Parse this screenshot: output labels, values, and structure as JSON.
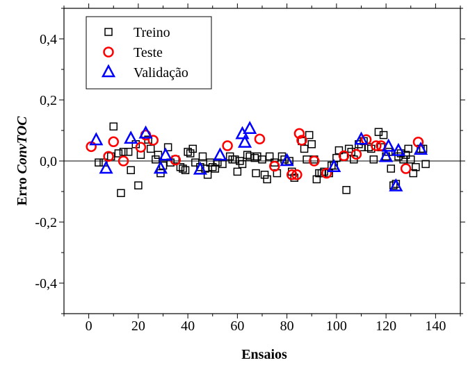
{
  "chart_data": {
    "type": "scatter",
    "xlabel": "Ensaios",
    "ylabel_prefix": "Erro ",
    "ylabel_italic": "ConvTOC",
    "xlim": [
      -10,
      150
    ],
    "ylim": [
      -0.5,
      0.5
    ],
    "xticks": [
      0,
      20,
      40,
      60,
      80,
      100,
      120,
      140
    ],
    "yticks": [
      -0.4,
      -0.2,
      0.0,
      0.2,
      0.4
    ],
    "ytick_labels": [
      "-0,4",
      "-0,2",
      "0,0",
      "0,2",
      "0,4"
    ],
    "zero_line": true,
    "legend_position": "top-left",
    "series": [
      {
        "name": "Treino",
        "marker": "square",
        "color": "#000000",
        "points": [
          [
            4,
            -0.005
          ],
          [
            6,
            -0.005
          ],
          [
            9,
            0.015
          ],
          [
            10,
            0.113
          ],
          [
            12,
            0.025
          ],
          [
            13,
            -0.105
          ],
          [
            14,
            0.03
          ],
          [
            16,
            0.03
          ],
          [
            17,
            -0.03
          ],
          [
            19,
            0.055
          ],
          [
            20,
            -0.08
          ],
          [
            21,
            0.02
          ],
          [
            24,
            0.07
          ],
          [
            25,
            0.04
          ],
          [
            27,
            0.005
          ],
          [
            28,
            0.02
          ],
          [
            29,
            -0.04
          ],
          [
            30,
            -0.015
          ],
          [
            32,
            0.045
          ],
          [
            33,
            -0.005
          ],
          [
            35,
            0.005
          ],
          [
            37,
            -0.02
          ],
          [
            38,
            -0.025
          ],
          [
            39,
            -0.03
          ],
          [
            40,
            0.03
          ],
          [
            41,
            0.025
          ],
          [
            42,
            0.04
          ],
          [
            43,
            -0.005
          ],
          [
            45,
            -0.02
          ],
          [
            46,
            0.015
          ],
          [
            47,
            -0.025
          ],
          [
            48,
            -0.045
          ],
          [
            49,
            -0.005
          ],
          [
            50,
            -0.02
          ],
          [
            51,
            -0.025
          ],
          [
            52,
            -0.005
          ],
          [
            54,
            -0.01
          ],
          [
            57,
            0.015
          ],
          [
            58,
            0.005
          ],
          [
            59,
            0.005
          ],
          [
            60,
            -0.035
          ],
          [
            61,
            0.0
          ],
          [
            62,
            -0.01
          ],
          [
            64,
            0.02
          ],
          [
            65,
            0.015
          ],
          [
            67,
            0.01
          ],
          [
            67.5,
            -0.04
          ],
          [
            68,
            0.015
          ],
          [
            70,
            0.005
          ],
          [
            71,
            -0.045
          ],
          [
            72,
            -0.06
          ],
          [
            73,
            0.015
          ],
          [
            75,
            -0.005
          ],
          [
            76,
            -0.04
          ],
          [
            78,
            0.015
          ],
          [
            79,
            0.005
          ],
          [
            81,
            0.0
          ],
          [
            82,
            -0.035
          ],
          [
            83,
            -0.055
          ],
          [
            86,
            0.065
          ],
          [
            87,
            0.04
          ],
          [
            88,
            0.005
          ],
          [
            89,
            0.085
          ],
          [
            90,
            0.055
          ],
          [
            91,
            0.005
          ],
          [
            92,
            -0.06
          ],
          [
            93,
            -0.04
          ],
          [
            94,
            -0.04
          ],
          [
            95,
            -0.035
          ],
          [
            97,
            -0.04
          ],
          [
            98,
            -0.015
          ],
          [
            99,
            -0.015
          ],
          [
            100,
            0.01
          ],
          [
            101,
            0.035
          ],
          [
            103,
            0.015
          ],
          [
            104,
            -0.095
          ],
          [
            105,
            0.04
          ],
          [
            106,
            0.03
          ],
          [
            107,
            0.005
          ],
          [
            109,
            0.055
          ],
          [
            110,
            0.045
          ],
          [
            111,
            0.065
          ],
          [
            113,
            0.045
          ],
          [
            114,
            0.04
          ],
          [
            115,
            0.005
          ],
          [
            117,
            0.095
          ],
          [
            118,
            0.045
          ],
          [
            119,
            0.085
          ],
          [
            120,
            0.015
          ],
          [
            121,
            0.03
          ],
          [
            122,
            -0.025
          ],
          [
            123,
            -0.08
          ],
          [
            124,
            -0.075
          ],
          [
            125,
            0.015
          ],
          [
            126,
            0.025
          ],
          [
            127,
            0.005
          ],
          [
            128,
            0.02
          ],
          [
            129,
            0.04
          ],
          [
            130,
            0.005
          ],
          [
            131,
            -0.04
          ],
          [
            132,
            -0.02
          ],
          [
            134,
            0.04
          ],
          [
            135,
            0.04
          ],
          [
            136,
            -0.01
          ]
        ]
      },
      {
        "name": "Teste",
        "marker": "circle",
        "color": "#ff0000",
        "points": [
          [
            1,
            0.047
          ],
          [
            8,
            0.015
          ],
          [
            10,
            0.063
          ],
          [
            14,
            0.0
          ],
          [
            21,
            0.045
          ],
          [
            23,
            0.085
          ],
          [
            26,
            0.068
          ],
          [
            35,
            0.003
          ],
          [
            56,
            0.05
          ],
          [
            69,
            0.072
          ],
          [
            75,
            -0.017
          ],
          [
            82,
            -0.045
          ],
          [
            84,
            -0.045
          ],
          [
            85,
            0.09
          ],
          [
            86,
            0.068
          ],
          [
            91,
            0.0
          ],
          [
            96,
            -0.04
          ],
          [
            103,
            0.017
          ],
          [
            108,
            0.022
          ],
          [
            112,
            0.07
          ],
          [
            116,
            0.05
          ],
          [
            118,
            0.05
          ],
          [
            128,
            -0.025
          ],
          [
            133,
            0.062
          ]
        ]
      },
      {
        "name": "Validação",
        "marker": "triangle",
        "color": "#0000ff",
        "points": [
          [
            3,
            0.068
          ],
          [
            7,
            -0.025
          ],
          [
            17,
            0.073
          ],
          [
            23,
            0.09
          ],
          [
            29,
            -0.025
          ],
          [
            31,
            0.018
          ],
          [
            45,
            -0.028
          ],
          [
            53,
            0.018
          ],
          [
            62,
            0.088
          ],
          [
            63,
            0.06
          ],
          [
            65,
            0.105
          ],
          [
            80,
            0.0
          ],
          [
            99,
            -0.02
          ],
          [
            110,
            0.07
          ],
          [
            120,
            0.013
          ],
          [
            121,
            0.047
          ],
          [
            124,
            -0.083
          ],
          [
            125,
            0.033
          ],
          [
            134,
            0.037
          ]
        ]
      }
    ]
  }
}
